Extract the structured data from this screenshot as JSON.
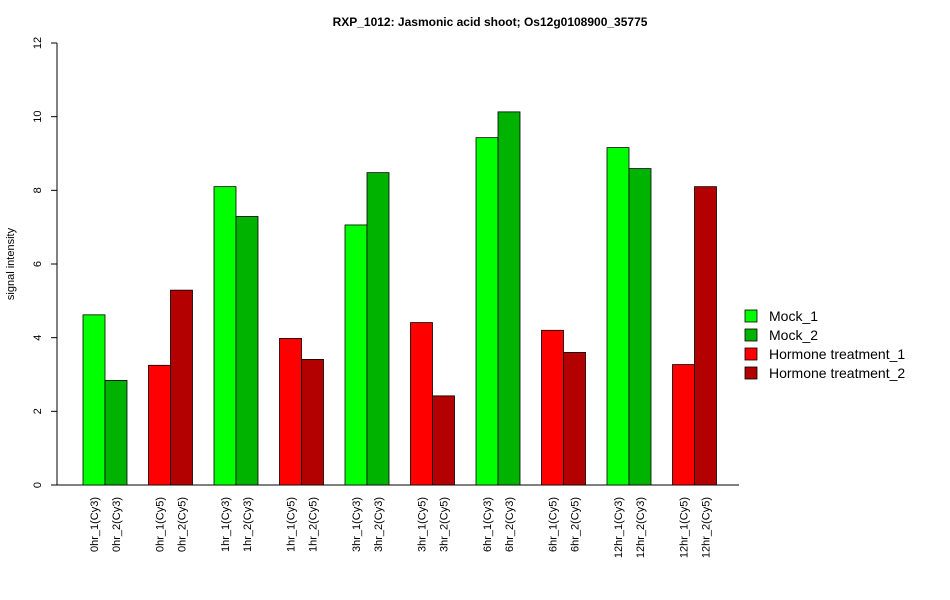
{
  "chart_data": {
    "type": "bar",
    "title": "RXP_1012: Jasmonic acid shoot; Os12g0108900_35775",
    "ylabel": "signal intensity",
    "xlabel": "",
    "ylim": [
      0,
      12
    ],
    "yticks": [
      0,
      2,
      4,
      6,
      8,
      10,
      12
    ],
    "grid": false,
    "legend_position": "right",
    "legend": [
      {
        "name": "Mock_1",
        "color": "#00ff00"
      },
      {
        "name": "Mock_2",
        "color": "#00b300"
      },
      {
        "name": "Hormone treatment_1",
        "color": "#ff0000"
      },
      {
        "name": "Hormone treatment_2",
        "color": "#b30000"
      }
    ],
    "bars": [
      {
        "label": "0hr_1(Cy3)",
        "value": 4.62,
        "color": "#00ff00"
      },
      {
        "label": "0hr_2(Cy3)",
        "value": 2.84,
        "color": "#00b300"
      },
      {
        "label": "0hr_1(Cy5)",
        "value": 3.25,
        "color": "#ff0000"
      },
      {
        "label": "0hr_2(Cy5)",
        "value": 5.29,
        "color": "#b30000"
      },
      {
        "label": "1hr_1(Cy3)",
        "value": 8.1,
        "color": "#00ff00"
      },
      {
        "label": "1hr_2(Cy3)",
        "value": 7.29,
        "color": "#00b300"
      },
      {
        "label": "1hr_1(Cy5)",
        "value": 3.98,
        "color": "#ff0000"
      },
      {
        "label": "1hr_2(Cy5)",
        "value": 3.41,
        "color": "#b30000"
      },
      {
        "label": "3hr_1(Cy3)",
        "value": 7.06,
        "color": "#00ff00"
      },
      {
        "label": "3hr_2(Cy3)",
        "value": 8.48,
        "color": "#00b300"
      },
      {
        "label": "3hr_1(Cy5)",
        "value": 4.41,
        "color": "#ff0000"
      },
      {
        "label": "3hr_2(Cy5)",
        "value": 2.42,
        "color": "#b30000"
      },
      {
        "label": "6hr_1(Cy3)",
        "value": 9.43,
        "color": "#00ff00"
      },
      {
        "label": "6hr_2(Cy3)",
        "value": 10.13,
        "color": "#00b300"
      },
      {
        "label": "6hr_1(Cy5)",
        "value": 4.2,
        "color": "#ff0000"
      },
      {
        "label": "6hr_2(Cy5)",
        "value": 3.6,
        "color": "#b30000"
      },
      {
        "label": "12hr_1(Cy3)",
        "value": 9.16,
        "color": "#00ff00"
      },
      {
        "label": "12hr_2(Cy3)",
        "value": 8.59,
        "color": "#00b300"
      },
      {
        "label": "12hr_1(Cy5)",
        "value": 3.27,
        "color": "#ff0000"
      },
      {
        "label": "12hr_2(Cy5)",
        "value": 8.1,
        "color": "#b30000"
      }
    ]
  }
}
